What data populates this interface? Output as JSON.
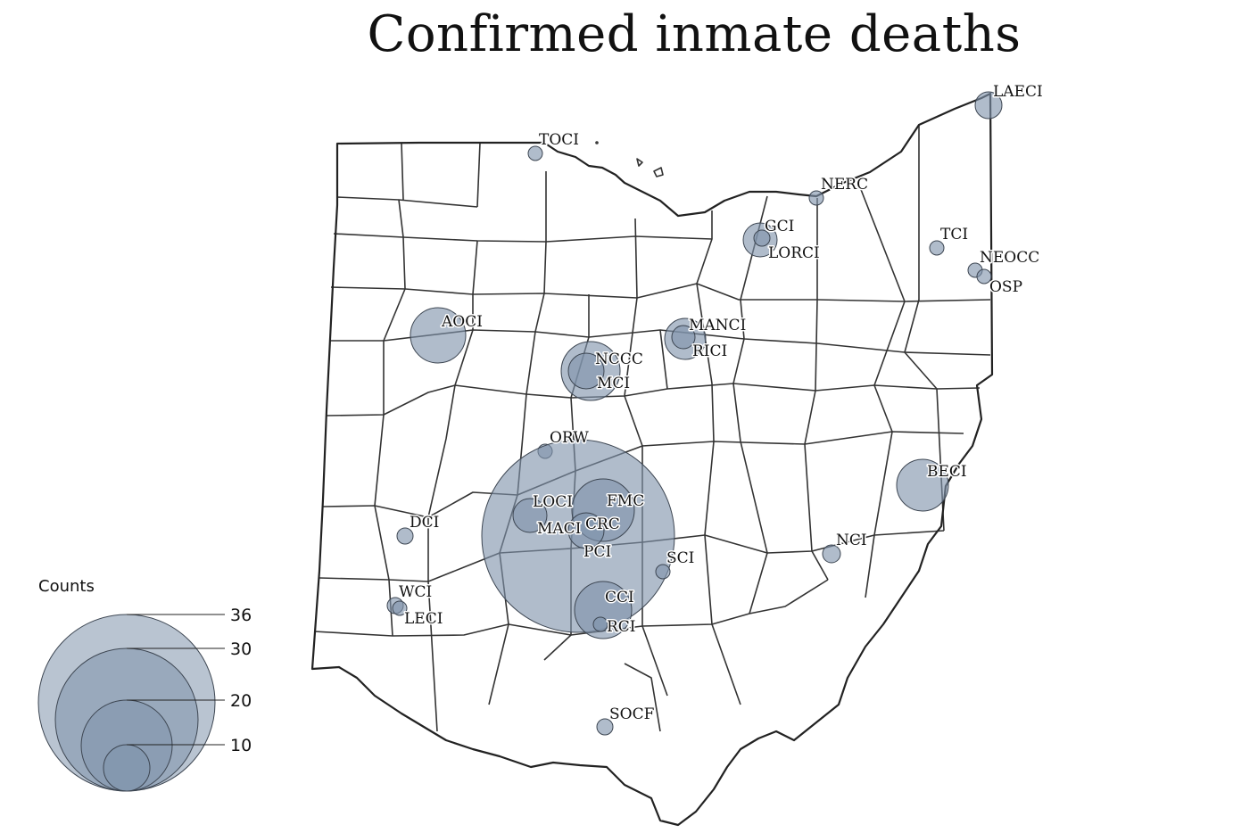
{
  "title": "Confirmed inmate deaths",
  "colors": {
    "bubble_fill": "#7f93ab",
    "bubble_stroke": "#3d4652",
    "county_line": "#333333"
  },
  "legend": {
    "title": "Counts",
    "entries": [
      {
        "label": "36",
        "value": 36
      },
      {
        "label": "30",
        "value": 30
      },
      {
        "label": "20",
        "value": 20
      },
      {
        "label": "10",
        "value": 10
      }
    ]
  },
  "prisons": [
    {
      "name": "LAECI"
    },
    {
      "name": "TOCI"
    },
    {
      "name": "NERC"
    },
    {
      "name": "GCI"
    },
    {
      "name": "LORCI"
    },
    {
      "name": "TCI"
    },
    {
      "name": "NEOCC"
    },
    {
      "name": "OSP"
    },
    {
      "name": "AOCI"
    },
    {
      "name": "MANCI"
    },
    {
      "name": "RICI"
    },
    {
      "name": "NCCC"
    },
    {
      "name": "MCI"
    },
    {
      "name": "ORW"
    },
    {
      "name": "BECI"
    },
    {
      "name": "LOCI"
    },
    {
      "name": "FMC"
    },
    {
      "name": "DCI"
    },
    {
      "name": "MACI"
    },
    {
      "name": "CRC"
    },
    {
      "name": "PCI"
    },
    {
      "name": "NCI"
    },
    {
      "name": "SCI"
    },
    {
      "name": "WCI"
    },
    {
      "name": "LECI"
    },
    {
      "name": "CCI"
    },
    {
      "name": "RCI"
    },
    {
      "name": "SOCF"
    }
  ]
}
